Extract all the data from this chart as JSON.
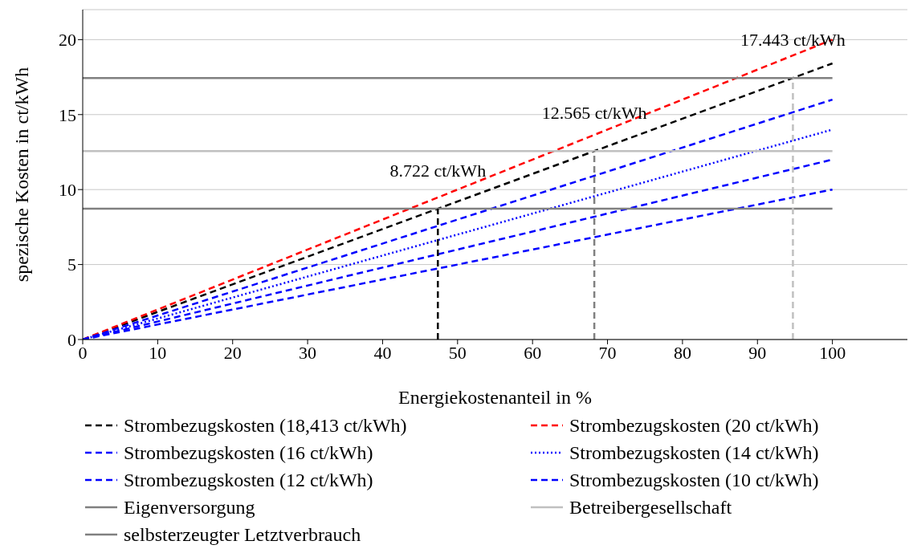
{
  "chart_data": {
    "type": "line",
    "xlabel": "Energiekostenanteil in %",
    "ylabel": "spezische Kosten in ct/kWh",
    "xlim": [
      0,
      110
    ],
    "xticks": [
      0,
      10,
      20,
      30,
      40,
      50,
      60,
      70,
      80,
      90,
      100
    ],
    "ylim": [
      0,
      22
    ],
    "yticks": [
      0,
      5,
      10,
      15,
      20
    ],
    "grid": "y",
    "legend": "bottom",
    "marker": "none",
    "series": [
      {
        "name": "Strombezugskosten (18,413 ct/kWh)",
        "color": "#000000",
        "line_style": "dashed",
        "x": [
          0,
          100
        ],
        "values": [
          0,
          18.413
        ]
      },
      {
        "name": "Strombezugskosten (20 ct/kWh)",
        "color": "#ff0000",
        "line_style": "dashed",
        "x": [
          0,
          100
        ],
        "values": [
          0,
          20
        ]
      },
      {
        "name": "Strombezugskosten (16 ct/kWh)",
        "color": "#0000ff",
        "line_style": "dashed",
        "x": [
          0,
          100
        ],
        "values": [
          0,
          16
        ]
      },
      {
        "name": "Strombezugskosten (14 ct/kWh)",
        "color": "#0000ff",
        "line_style": "dotted",
        "x": [
          0,
          100
        ],
        "values": [
          0,
          14
        ]
      },
      {
        "name": "Strombezugskosten (12 ct/kWh)",
        "color": "#0000ff",
        "line_style": "dashed",
        "x": [
          0,
          100
        ],
        "values": [
          0,
          12
        ]
      },
      {
        "name": "Strombezugskosten (10 ct/kWh)",
        "color": "#0000ff",
        "line_style": "dashed",
        "x": [
          0,
          100
        ],
        "values": [
          0,
          10
        ]
      },
      {
        "name": "Eigenversorgung",
        "color": "#808080",
        "line_style": "solid",
        "x": [
          0,
          100
        ],
        "values": [
          17.443,
          17.443
        ]
      },
      {
        "name": "Betreibergesellschaft",
        "color": "#c0c0c0",
        "line_style": "solid",
        "x": [
          0,
          100
        ],
        "values": [
          12.565,
          12.565
        ]
      },
      {
        "name": "selbsterzeugter Letztverbrauch",
        "color": "#808080",
        "line_style": "solid",
        "x": [
          0,
          100
        ],
        "values": [
          8.722,
          8.722
        ]
      },
      {
        "color": "#000000",
        "line_style": "dashed",
        "x": [
          47.37,
          47.37
        ],
        "values": [
          0,
          8.722
        ]
      },
      {
        "color": "#808080",
        "line_style": "dashed",
        "x": [
          68.24,
          68.24
        ],
        "values": [
          0,
          12.565
        ]
      },
      {
        "color": "#c0c0c0",
        "line_style": "dashed",
        "x": [
          94.73,
          94.73
        ],
        "values": [
          0,
          17.443
        ]
      }
    ],
    "annotations": [
      {
        "text": "8.722 ct/kWh",
        "x": 47.37,
        "y": 8.722
      },
      {
        "text": "12.565 ct/kWh",
        "x": 68.24,
        "y": 12.565
      },
      {
        "text": "17.443 ct/kWh",
        "x": 94.73,
        "y": 17.443
      }
    ]
  }
}
